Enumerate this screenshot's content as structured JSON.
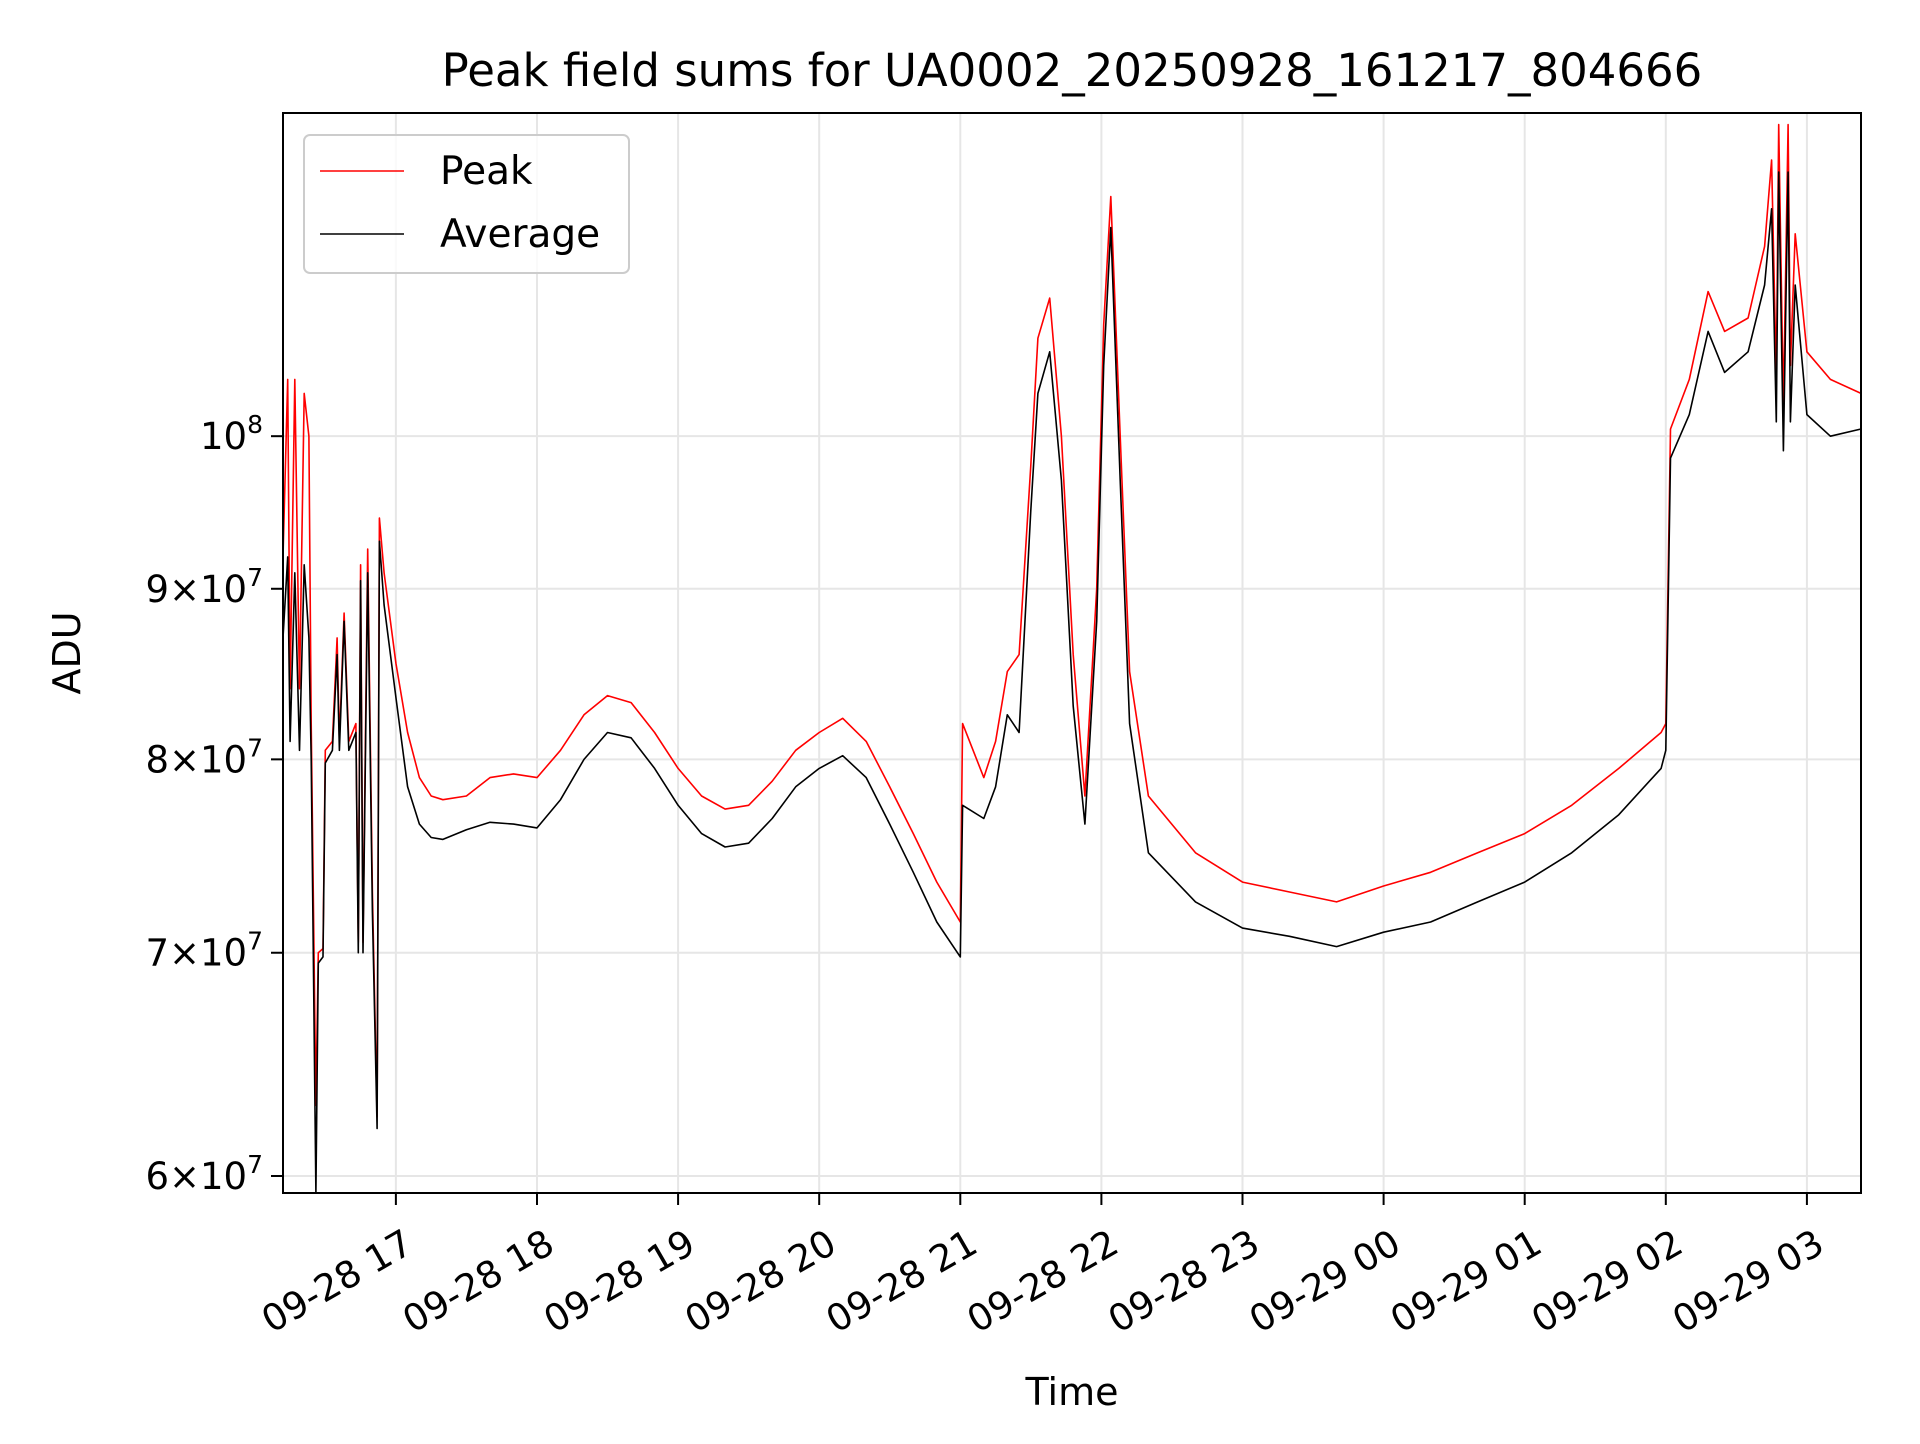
{
  "chart_data": {
    "type": "line",
    "title": "Peak field sums for UA0002_20250928_161217_804666",
    "xlabel": "Time",
    "ylabel": "ADU",
    "yscale": "log",
    "ylim": [
      59300000,
      125000000
    ],
    "xlim": [
      "2025-09-28 16:12",
      "2025-09-29 03:23"
    ],
    "grid": true,
    "legend": "upper-left",
    "x_ticks": [
      {
        "value": "2025-09-28 17:00",
        "label": "09-28 17"
      },
      {
        "value": "2025-09-28 18:00",
        "label": "09-28 18"
      },
      {
        "value": "2025-09-28 19:00",
        "label": "09-28 19"
      },
      {
        "value": "2025-09-28 20:00",
        "label": "09-28 20"
      },
      {
        "value": "2025-09-28 21:00",
        "label": "09-28 21"
      },
      {
        "value": "2025-09-28 22:00",
        "label": "09-28 22"
      },
      {
        "value": "2025-09-28 23:00",
        "label": "09-28 23"
      },
      {
        "value": "2025-09-29 00:00",
        "label": "09-29 00"
      },
      {
        "value": "2025-09-29 01:00",
        "label": "09-29 01"
      },
      {
        "value": "2025-09-29 02:00",
        "label": "09-29 02"
      },
      {
        "value": "2025-09-29 03:00",
        "label": "09-29 03"
      }
    ],
    "y_ticks": [
      {
        "value": 60000000,
        "mantissa": "6",
        "base": "10",
        "exponent": "7"
      },
      {
        "value": 70000000,
        "mantissa": "7",
        "base": "10",
        "exponent": "7"
      },
      {
        "value": 80000000,
        "mantissa": "8",
        "base": "10",
        "exponent": "7"
      },
      {
        "value": 90000000,
        "mantissa": "9",
        "base": "10",
        "exponent": "7"
      },
      {
        "value": 100000000,
        "mantissa": "",
        "base": "10",
        "exponent": "8"
      }
    ],
    "series": [
      {
        "name": "Peak",
        "color": "#ff0000",
        "points": [
          [
            "2025-09-28 16:12",
            92000000
          ],
          [
            "2025-09-28 16:14",
            104000000
          ],
          [
            "2025-09-28 16:15",
            84000000
          ],
          [
            "2025-09-28 16:17",
            104000000
          ],
          [
            "2025-09-28 16:19",
            84000000
          ],
          [
            "2025-09-28 16:21",
            103000000
          ],
          [
            "2025-09-28 16:23",
            100000000
          ],
          [
            "2025-09-28 16:24",
            82000000
          ],
          [
            "2025-09-28 16:26",
            63000000
          ],
          [
            "2025-09-28 16:27",
            70000000
          ],
          [
            "2025-09-28 16:29",
            70200000
          ],
          [
            "2025-09-28 16:30",
            80500000
          ],
          [
            "2025-09-28 16:33",
            81000000
          ],
          [
            "2025-09-28 16:35",
            87000000
          ],
          [
            "2025-09-28 16:36",
            81000000
          ],
          [
            "2025-09-28 16:38",
            88500000
          ],
          [
            "2025-09-28 16:40",
            81000000
          ],
          [
            "2025-09-28 16:43",
            82000000
          ],
          [
            "2025-09-28 16:44",
            70500000
          ],
          [
            "2025-09-28 16:45",
            91500000
          ],
          [
            "2025-09-28 16:46",
            70500000
          ],
          [
            "2025-09-28 16:48",
            92500000
          ],
          [
            "2025-09-28 16:50",
            73000000
          ],
          [
            "2025-09-28 16:52",
            62500000
          ],
          [
            "2025-09-28 16:53",
            94500000
          ],
          [
            "2025-09-28 16:55",
            91000000
          ],
          [
            "2025-09-28 17:00",
            85500000
          ],
          [
            "2025-09-28 17:05",
            81500000
          ],
          [
            "2025-09-28 17:10",
            79000000
          ],
          [
            "2025-09-28 17:15",
            78000000
          ],
          [
            "2025-09-28 17:20",
            77800000
          ],
          [
            "2025-09-28 17:30",
            78000000
          ],
          [
            "2025-09-28 17:40",
            79000000
          ],
          [
            "2025-09-28 17:50",
            79200000
          ],
          [
            "2025-09-28 18:00",
            79000000
          ],
          [
            "2025-09-28 18:10",
            80500000
          ],
          [
            "2025-09-28 18:20",
            82500000
          ],
          [
            "2025-09-28 18:30",
            83600000
          ],
          [
            "2025-09-28 18:40",
            83200000
          ],
          [
            "2025-09-28 18:50",
            81500000
          ],
          [
            "2025-09-28 19:00",
            79500000
          ],
          [
            "2025-09-28 19:10",
            78000000
          ],
          [
            "2025-09-28 19:20",
            77300000
          ],
          [
            "2025-09-28 19:30",
            77500000
          ],
          [
            "2025-09-28 19:40",
            78800000
          ],
          [
            "2025-09-28 19:50",
            80500000
          ],
          [
            "2025-09-28 20:00",
            81500000
          ],
          [
            "2025-09-28 20:10",
            82300000
          ],
          [
            "2025-09-28 20:20",
            81000000
          ],
          [
            "2025-09-28 20:30",
            78500000
          ],
          [
            "2025-09-28 20:40",
            76000000
          ],
          [
            "2025-09-28 20:50",
            73500000
          ],
          [
            "2025-09-28 21:00",
            71500000
          ],
          [
            "2025-09-28 21:01",
            82000000
          ],
          [
            "2025-09-28 21:10",
            79000000
          ],
          [
            "2025-09-28 21:15",
            81000000
          ],
          [
            "2025-09-28 21:20",
            85000000
          ],
          [
            "2025-09-28 21:25",
            86000000
          ],
          [
            "2025-09-28 21:30",
            98000000
          ],
          [
            "2025-09-28 21:33",
            107000000
          ],
          [
            "2025-09-28 21:38",
            110000000
          ],
          [
            "2025-09-28 21:43",
            100000000
          ],
          [
            "2025-09-28 21:48",
            86000000
          ],
          [
            "2025-09-28 21:53",
            78000000
          ],
          [
            "2025-09-28 21:58",
            90000000
          ],
          [
            "2025-09-28 22:01",
            108000000
          ],
          [
            "2025-09-28 22:04",
            118000000
          ],
          [
            "2025-09-28 22:08",
            100000000
          ],
          [
            "2025-09-28 22:12",
            85000000
          ],
          [
            "2025-09-28 22:20",
            78000000
          ],
          [
            "2025-09-28 22:40",
            75000000
          ],
          [
            "2025-09-28 23:00",
            73500000
          ],
          [
            "2025-09-28 23:20",
            73000000
          ],
          [
            "2025-09-28 23:40",
            72500000
          ],
          [
            "2025-09-29 00:00",
            73300000
          ],
          [
            "2025-09-29 00:20",
            74000000
          ],
          [
            "2025-09-29 00:40",
            75000000
          ],
          [
            "2025-09-29 01:00",
            76000000
          ],
          [
            "2025-09-29 01:20",
            77500000
          ],
          [
            "2025-09-29 01:40",
            79500000
          ],
          [
            "2025-09-29 01:58",
            81500000
          ],
          [
            "2025-09-29 02:00",
            82000000
          ],
          [
            "2025-09-29 02:02",
            100500000
          ],
          [
            "2025-09-29 02:10",
            104000000
          ],
          [
            "2025-09-29 02:18",
            110500000
          ],
          [
            "2025-09-29 02:25",
            107500000
          ],
          [
            "2025-09-29 02:35",
            108500000
          ],
          [
            "2025-09-29 02:42",
            114000000
          ],
          [
            "2025-09-29 02:45",
            121000000
          ],
          [
            "2025-09-29 02:47",
            104000000
          ],
          [
            "2025-09-29 02:48",
            124000000
          ],
          [
            "2025-09-29 02:50",
            102000000
          ],
          [
            "2025-09-29 02:52",
            124000000
          ],
          [
            "2025-09-29 02:53",
            105000000
          ],
          [
            "2025-09-29 02:55",
            115000000
          ],
          [
            "2025-09-29 03:00",
            106000000
          ],
          [
            "2025-09-29 03:10",
            104000000
          ],
          [
            "2025-09-29 03:23",
            103000000
          ]
        ]
      },
      {
        "name": "Average",
        "color": "#000000",
        "points": [
          [
            "2025-09-28 16:12",
            87000000
          ],
          [
            "2025-09-28 16:14",
            92000000
          ],
          [
            "2025-09-28 16:15",
            81000000
          ],
          [
            "2025-09-28 16:17",
            91000000
          ],
          [
            "2025-09-28 16:19",
            80500000
          ],
          [
            "2025-09-28 16:21",
            91500000
          ],
          [
            "2025-09-28 16:23",
            87000000
          ],
          [
            "2025-09-28 16:24",
            80000000
          ],
          [
            "2025-09-28 16:26",
            59300000
          ],
          [
            "2025-09-28 16:27",
            69500000
          ],
          [
            "2025-09-28 16:29",
            69800000
          ],
          [
            "2025-09-28 16:30",
            79800000
          ],
          [
            "2025-09-28 16:33",
            80500000
          ],
          [
            "2025-09-28 16:35",
            86000000
          ],
          [
            "2025-09-28 16:36",
            80500000
          ],
          [
            "2025-09-28 16:38",
            88000000
          ],
          [
            "2025-09-28 16:40",
            80500000
          ],
          [
            "2025-09-28 16:43",
            81500000
          ],
          [
            "2025-09-28 16:44",
            70000000
          ],
          [
            "2025-09-28 16:45",
            90500000
          ],
          [
            "2025-09-28 16:46",
            70000000
          ],
          [
            "2025-09-28 16:48",
            91000000
          ],
          [
            "2025-09-28 16:50",
            72000000
          ],
          [
            "2025-09-28 16:52",
            62000000
          ],
          [
            "2025-09-28 16:53",
            93000000
          ],
          [
            "2025-09-28 16:55",
            89000000
          ],
          [
            "2025-09-28 17:00",
            83500000
          ],
          [
            "2025-09-28 17:05",
            78500000
          ],
          [
            "2025-09-28 17:10",
            76500000
          ],
          [
            "2025-09-28 17:15",
            75800000
          ],
          [
            "2025-09-28 17:20",
            75700000
          ],
          [
            "2025-09-28 17:30",
            76200000
          ],
          [
            "2025-09-28 17:40",
            76600000
          ],
          [
            "2025-09-28 17:50",
            76500000
          ],
          [
            "2025-09-28 18:00",
            76300000
          ],
          [
            "2025-09-28 18:10",
            77800000
          ],
          [
            "2025-09-28 18:20",
            80000000
          ],
          [
            "2025-09-28 18:30",
            81500000
          ],
          [
            "2025-09-28 18:40",
            81200000
          ],
          [
            "2025-09-28 18:50",
            79500000
          ],
          [
            "2025-09-28 19:00",
            77500000
          ],
          [
            "2025-09-28 19:10",
            76000000
          ],
          [
            "2025-09-28 19:20",
            75300000
          ],
          [
            "2025-09-28 19:30",
            75500000
          ],
          [
            "2025-09-28 19:40",
            76800000
          ],
          [
            "2025-09-28 19:50",
            78500000
          ],
          [
            "2025-09-28 20:00",
            79500000
          ],
          [
            "2025-09-28 20:10",
            80200000
          ],
          [
            "2025-09-28 20:20",
            79000000
          ],
          [
            "2025-09-28 20:30",
            76500000
          ],
          [
            "2025-09-28 20:40",
            74000000
          ],
          [
            "2025-09-28 20:50",
            71500000
          ],
          [
            "2025-09-28 21:00",
            69800000
          ],
          [
            "2025-09-28 21:01",
            77500000
          ],
          [
            "2025-09-28 21:10",
            76800000
          ],
          [
            "2025-09-28 21:15",
            78500000
          ],
          [
            "2025-09-28 21:20",
            82500000
          ],
          [
            "2025-09-28 21:25",
            81500000
          ],
          [
            "2025-09-28 21:30",
            95000000
          ],
          [
            "2025-09-28 21:33",
            103000000
          ],
          [
            "2025-09-28 21:38",
            106000000
          ],
          [
            "2025-09-28 21:43",
            97000000
          ],
          [
            "2025-09-28 21:48",
            83000000
          ],
          [
            "2025-09-28 21:53",
            76500000
          ],
          [
            "2025-09-28 21:58",
            88000000
          ],
          [
            "2025-09-28 22:01",
            105000000
          ],
          [
            "2025-09-28 22:04",
            115500000
          ],
          [
            "2025-09-28 22:08",
            97000000
          ],
          [
            "2025-09-28 22:12",
            82000000
          ],
          [
            "2025-09-28 22:20",
            75000000
          ],
          [
            "2025-09-28 22:40",
            72500000
          ],
          [
            "2025-09-28 23:00",
            71200000
          ],
          [
            "2025-09-28 23:20",
            70800000
          ],
          [
            "2025-09-28 23:40",
            70300000
          ],
          [
            "2025-09-29 00:00",
            71000000
          ],
          [
            "2025-09-29 00:20",
            71500000
          ],
          [
            "2025-09-29 00:40",
            72500000
          ],
          [
            "2025-09-29 01:00",
            73500000
          ],
          [
            "2025-09-29 01:20",
            75000000
          ],
          [
            "2025-09-29 01:40",
            77000000
          ],
          [
            "2025-09-29 01:58",
            79500000
          ],
          [
            "2025-09-29 02:00",
            80500000
          ],
          [
            "2025-09-29 02:02",
            98500000
          ],
          [
            "2025-09-29 02:10",
            101500000
          ],
          [
            "2025-09-29 02:18",
            107500000
          ],
          [
            "2025-09-29 02:25",
            104500000
          ],
          [
            "2025-09-29 02:35",
            106000000
          ],
          [
            "2025-09-29 02:42",
            111000000
          ],
          [
            "2025-09-29 02:45",
            117000000
          ],
          [
            "2025-09-29 02:47",
            101000000
          ],
          [
            "2025-09-29 02:48",
            120000000
          ],
          [
            "2025-09-29 02:50",
            99000000
          ],
          [
            "2025-09-29 02:52",
            120000000
          ],
          [
            "2025-09-29 02:53",
            101000000
          ],
          [
            "2025-09-29 02:55",
            111000000
          ],
          [
            "2025-09-29 03:00",
            101500000
          ],
          [
            "2025-09-29 03:10",
            100000000
          ],
          [
            "2025-09-29 03:23",
            100500000
          ]
        ]
      }
    ]
  }
}
